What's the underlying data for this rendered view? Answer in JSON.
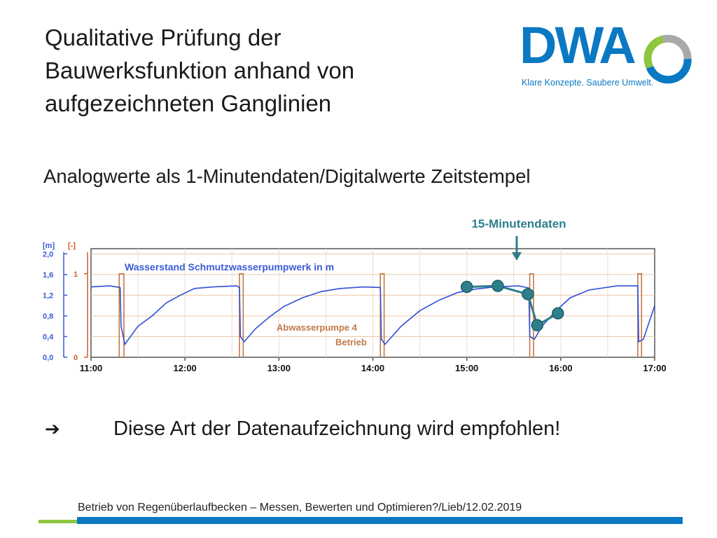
{
  "slide": {
    "title": "Qualitative Prüfung der\nBauwerksfunktion anhand von\naufgezeichneten Ganglinien",
    "subtitle": "Analogwerte als 1-Minutendaten/Digitalwerte Zeitstempel",
    "conclusion_arrow": "➔",
    "conclusion_text": "Diese Art der Datenaufzeichnung wird empfohlen!",
    "footer": "Betrieb von Regenüberlaufbecken – Messen, Bewerten und Optimieren?/Lieb/12.02.2019"
  },
  "logo": {
    "wordmark": "DWA",
    "tagline": "Klare Konzepte. Saubere Umwelt.",
    "colors": {
      "blue": "#0a78c2",
      "green": "#8dc63f",
      "gray": "#a9a9a9"
    }
  },
  "chart_data": {
    "type": "line",
    "y_left_unit": "[m]",
    "y_right_unit": "[-]",
    "y_left_ticks": [
      "2,0",
      "1,6",
      "1,2",
      "0,8",
      "0,4",
      "0,0"
    ],
    "y_right_ticks": [
      "1",
      "0"
    ],
    "y_left_range": [
      0,
      2.1
    ],
    "y_right_range": [
      0,
      1.3
    ],
    "x_range_hours": [
      11.0,
      17.0
    ],
    "x_ticks": [
      "11:00",
      "12:00",
      "13:00",
      "14:00",
      "15:00",
      "16:00",
      "17:00"
    ],
    "grid": true,
    "annotations": [
      "Wasserstand Schmutzwasserpumpwerk in m",
      "Abwasserpumpe 4",
      "Betrieb"
    ],
    "callout": "15-Minutendaten",
    "colors": {
      "water": "#2f4fd8",
      "pump": "#c0794a",
      "samples": "#2d7f8c",
      "grid": "#e8c9a8",
      "label": "#3b5bd6",
      "axis_red": "#d45a28"
    },
    "series": [
      {
        "name": "Wasserstand Schmutzwasserpumpwerk in m",
        "x": [
          11.0,
          11.2,
          11.31,
          11.32,
          11.36,
          11.5,
          11.65,
          11.8,
          11.95,
          12.1,
          12.3,
          12.55,
          12.58,
          12.59,
          12.63,
          12.75,
          12.9,
          13.05,
          13.25,
          13.45,
          13.65,
          13.9,
          14.08,
          14.09,
          14.13,
          14.3,
          14.5,
          14.7,
          14.9,
          15.1,
          15.3,
          15.55,
          15.66,
          15.67,
          15.72,
          15.8,
          15.95,
          16.1,
          16.3,
          16.6,
          16.82,
          16.83,
          16.88,
          17.0
        ],
        "y": [
          1.36,
          1.38,
          1.35,
          0.6,
          0.25,
          0.6,
          0.8,
          1.05,
          1.2,
          1.33,
          1.36,
          1.38,
          1.35,
          0.4,
          0.3,
          0.55,
          0.78,
          0.98,
          1.15,
          1.27,
          1.33,
          1.36,
          1.35,
          0.35,
          0.25,
          0.6,
          0.9,
          1.1,
          1.25,
          1.32,
          1.36,
          1.38,
          1.34,
          0.4,
          0.35,
          0.6,
          0.9,
          1.15,
          1.3,
          1.38,
          1.38,
          0.3,
          0.35,
          1.0
        ]
      },
      {
        "name": "Abwasserpumpe 4 Betrieb",
        "on_intervals": [
          [
            11.3,
            11.35
          ],
          [
            12.58,
            12.62
          ],
          [
            14.08,
            14.12
          ],
          [
            15.67,
            15.71
          ],
          [
            16.82,
            16.86
          ]
        ]
      },
      {
        "name": "15-Minutendaten",
        "x": [
          15.0,
          15.33,
          15.65,
          15.75,
          15.97
        ],
        "y": [
          1.36,
          1.38,
          1.22,
          0.62,
          0.85
        ]
      }
    ]
  }
}
